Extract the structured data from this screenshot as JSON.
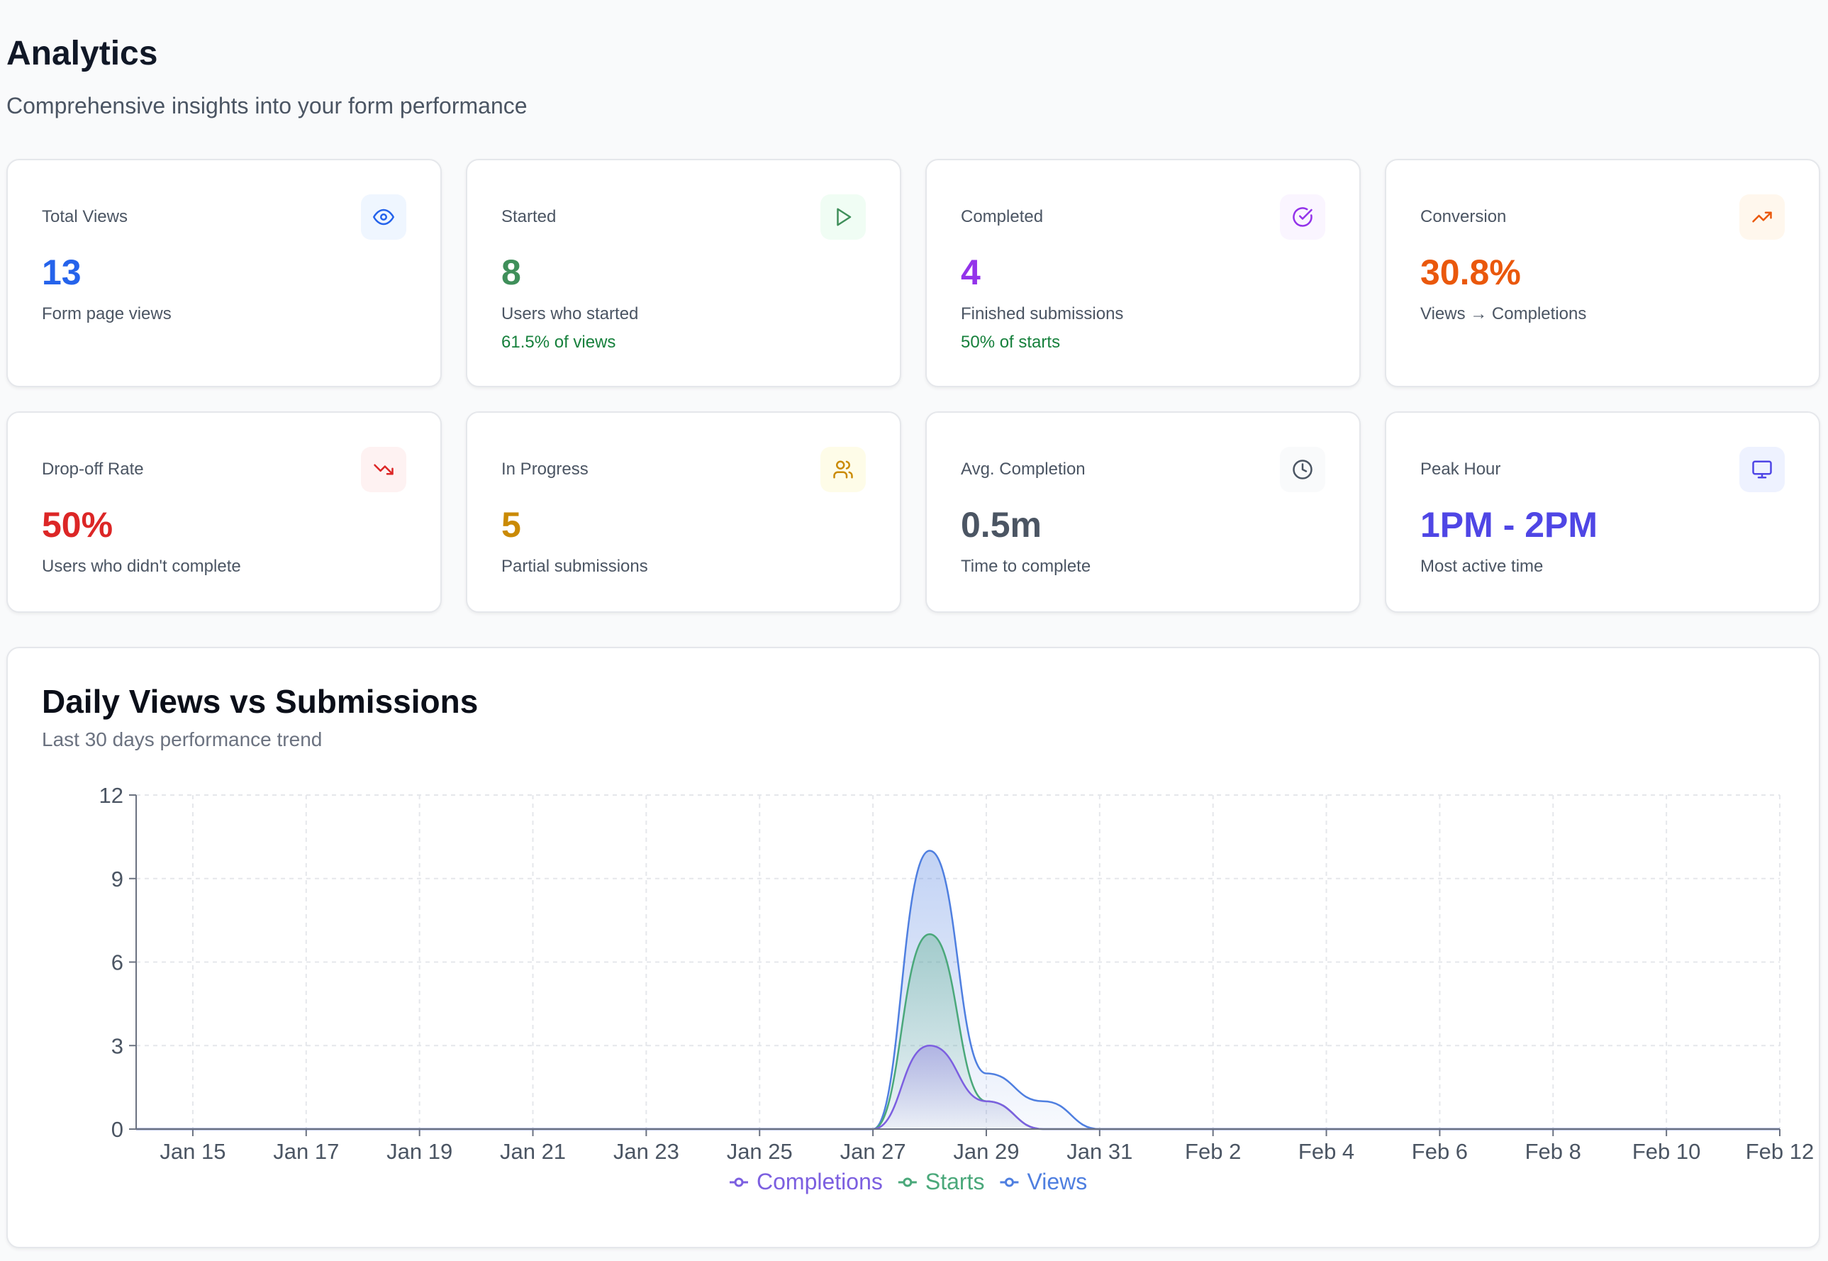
{
  "header": {
    "title": "Analytics",
    "subtitle": "Comprehensive insights into your form performance"
  },
  "cards": [
    {
      "label": "Total Views",
      "value": "13",
      "desc": "Form page views",
      "sub": "",
      "icon": "eye-icon",
      "color": "#2563eb",
      "bg": "#eff6ff"
    },
    {
      "label": "Started",
      "value": "8",
      "desc": "Users who started",
      "sub": "61.5% of views",
      "icon": "play-icon",
      "color": "#3f8f5a",
      "bg": "#f0fdf4"
    },
    {
      "label": "Completed",
      "value": "4",
      "desc": "Finished submissions",
      "sub": "50% of starts",
      "icon": "check-circle-icon",
      "color": "#9333ea",
      "bg": "#faf5ff"
    },
    {
      "label": "Conversion",
      "value": "30.8%",
      "desc": "Views → Completions",
      "sub": "",
      "icon": "trending-up-icon",
      "color": "#ea580c",
      "bg": "#fff7ed"
    },
    {
      "label": "Drop-off Rate",
      "value": "50%",
      "desc": "Users who didn't complete",
      "sub": "",
      "icon": "trending-down-icon",
      "color": "#dc2626",
      "bg": "#fef2f2"
    },
    {
      "label": "In Progress",
      "value": "5",
      "desc": "Partial submissions",
      "sub": "",
      "icon": "users-icon",
      "color": "#ca8a04",
      "bg": "#fefce8"
    },
    {
      "label": "Avg. Completion",
      "value": "0.5m",
      "desc": "Time to complete",
      "sub": "",
      "icon": "clock-icon",
      "color": "#4b5563",
      "bg": "#f9fafb"
    },
    {
      "label": "Peak Hour",
      "value": "1PM - 2PM",
      "desc": "Most active time",
      "sub": "",
      "icon": "monitor-icon",
      "color": "#4f46e5",
      "bg": "#eef2ff"
    }
  ],
  "chart_data": {
    "type": "area",
    "title": "Daily Views vs Submissions",
    "subtitle": "Last 30 days performance trend",
    "x": [
      "Jan 14",
      "Jan 15",
      "Jan 16",
      "Jan 17",
      "Jan 18",
      "Jan 19",
      "Jan 20",
      "Jan 21",
      "Jan 22",
      "Jan 23",
      "Jan 24",
      "Jan 25",
      "Jan 26",
      "Jan 27",
      "Jan 28",
      "Jan 29",
      "Jan 30",
      "Jan 31",
      "Feb 1",
      "Feb 2",
      "Feb 3",
      "Feb 4",
      "Feb 5",
      "Feb 6",
      "Feb 7",
      "Feb 8",
      "Feb 9",
      "Feb 10",
      "Feb 11",
      "Feb 12"
    ],
    "x_ticks": [
      "Jan 15",
      "Jan 17",
      "Jan 19",
      "Jan 21",
      "Jan 23",
      "Jan 25",
      "Jan 27",
      "Jan 29",
      "Jan 31",
      "Feb 2",
      "Feb 4",
      "Feb 6",
      "Feb 8",
      "Feb 10",
      "Feb 12"
    ],
    "series": [
      {
        "name": "Views",
        "color": "#4f7fe0",
        "values": [
          0,
          0,
          0,
          0,
          0,
          0,
          0,
          0,
          0,
          0,
          0,
          0,
          0,
          0,
          10,
          2,
          1,
          0,
          0,
          0,
          0,
          0,
          0,
          0,
          0,
          0,
          0,
          0,
          0,
          0
        ]
      },
      {
        "name": "Starts",
        "color": "#4aa87a",
        "values": [
          0,
          0,
          0,
          0,
          0,
          0,
          0,
          0,
          0,
          0,
          0,
          0,
          0,
          0,
          7,
          1,
          0,
          0,
          0,
          0,
          0,
          0,
          0,
          0,
          0,
          0,
          0,
          0,
          0,
          0
        ]
      },
      {
        "name": "Completions",
        "color": "#7c5fe0",
        "values": [
          0,
          0,
          0,
          0,
          0,
          0,
          0,
          0,
          0,
          0,
          0,
          0,
          0,
          0,
          3,
          1,
          0,
          0,
          0,
          0,
          0,
          0,
          0,
          0,
          0,
          0,
          0,
          0,
          0,
          0
        ]
      }
    ],
    "legend_order": [
      "Completions",
      "Starts",
      "Views"
    ],
    "yticks": [
      0,
      3,
      6,
      9,
      12
    ],
    "ylim": [
      0,
      12
    ],
    "grid": true,
    "legend_position": "bottom-center"
  }
}
